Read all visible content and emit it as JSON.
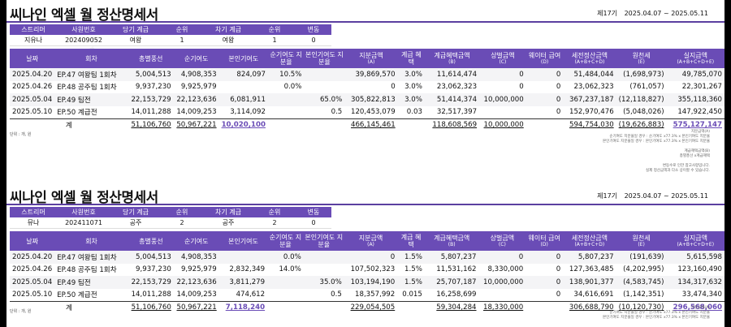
{
  "sections": [
    {
      "title": "씨나인 엑셀 월 정산명세서",
      "period_label": "제17기",
      "period_range": "2025.04.07 ~ 2025.05.11",
      "info_headers": [
        "스트리머",
        "사원번호",
        "당기 계급",
        "순위",
        "차기 계급",
        "순위",
        "변동"
      ],
      "info_values": [
        "지유나",
        "202409052",
        "여왕",
        "1",
        "여왕",
        "1",
        "0"
      ],
      "headers": [
        {
          "main": "날짜",
          "sub": ""
        },
        {
          "main": "회차",
          "sub": ""
        },
        {
          "main": "총별풍선",
          "sub": ""
        },
        {
          "main": "순기여도",
          "sub": ""
        },
        {
          "main": "본인기여도",
          "sub": ""
        },
        {
          "main": "순기여도 지분율",
          "sub": ""
        },
        {
          "main": "본인기여도 지분율",
          "sub": ""
        },
        {
          "main": "지분금액",
          "sub": "(A)"
        },
        {
          "main": "계급 혜택",
          "sub": ""
        },
        {
          "main": "계급혜택금액",
          "sub": "(B)"
        },
        {
          "main": "상벌금액",
          "sub": "(C)"
        },
        {
          "main": "웨이터 급여",
          "sub": "(D)"
        },
        {
          "main": "세전정산금액",
          "sub": "(A+B+C+D)"
        },
        {
          "main": "원천세",
          "sub": "(E)"
        },
        {
          "main": "실지급액",
          "sub": "(A+B+C+D+E)"
        }
      ],
      "rows": [
        [
          "2025.04.20",
          "EP.47 여왕팀 1회차",
          "5,004,513",
          "4,908,353",
          "824,097",
          "10.5%",
          "",
          "39,869,570",
          "3.0%",
          "11,614,474",
          "0",
          "0",
          "51,484,044",
          "(1,698,973)",
          "49,785,070"
        ],
        [
          "2025.04.26",
          "EP.48 공주팀 1회차",
          "9,937,230",
          "9,925,979",
          "",
          "0.0%",
          "",
          "0",
          "3.0%",
          "23,062,323",
          "0",
          "0",
          "23,062,323",
          "(761,057)",
          "22,301,267"
        ],
        [
          "2025.05.04",
          "EP.49 팀전",
          "22,153,729",
          "22,123,636",
          "6,081,911",
          "",
          "65.0%",
          "305,822,813",
          "3.0%",
          "51,414,374",
          "10,000,000",
          "0",
          "367,237,187",
          "(12,118,827)",
          "355,118,360"
        ],
        [
          "2025.05.10",
          "EP.50 계급전",
          "14,011,288",
          "14,009,253",
          "3,114,092",
          "",
          "0.5",
          "120,453,079",
          "0.03",
          "32,517,397",
          "",
          "0",
          "152,970,476",
          "(5,048,026)",
          "147,922,450"
        ]
      ],
      "total": {
        "label": "계",
        "values": [
          "51,106,760",
          "50,967,221",
          "10,020,100",
          "",
          "",
          "466,145,461",
          "",
          "118,608,569",
          "10,000,000",
          "",
          "594,754,030",
          "(19,626,883)",
          "575,127,147"
        ]
      },
      "unit": "단위 : 개, 원",
      "notes": [
        "지분금액(A)",
        "순기여도 지분율일 경우 : 순기여도 x77.3% x 본인기여도 지분율",
        "본인기여도 지분율일 경우 : 본인기여도 x77.3% x 본인기여도 지분율",
        "",
        "계급혜택금액(B)",
        "총별풍선 x계급혜택",
        "",
        "변동수로 인한 참고사항입니다.",
        "실제 정산금액과 다소 상이할 수 있습니다."
      ]
    },
    {
      "title": "씨나인 엑셀 월 정산명세서",
      "period_label": "제17기",
      "period_range": "2025.04.07 ~ 2025.05.11",
      "info_headers": [
        "스트리머",
        "사원번호",
        "당기 계급",
        "순위",
        "차기 계급",
        "순위",
        "변동"
      ],
      "info_values": [
        "뮤나",
        "202411071",
        "공주",
        "2",
        "공주",
        "2",
        "0"
      ],
      "headers": [
        {
          "main": "날짜",
          "sub": ""
        },
        {
          "main": "회차",
          "sub": ""
        },
        {
          "main": "총별풍선",
          "sub": ""
        },
        {
          "main": "순기여도",
          "sub": ""
        },
        {
          "main": "본인기여도",
          "sub": ""
        },
        {
          "main": "순기여도 지분율",
          "sub": ""
        },
        {
          "main": "본인기여도 지분율",
          "sub": ""
        },
        {
          "main": "지분금액",
          "sub": "(A)"
        },
        {
          "main": "계급 혜택",
          "sub": ""
        },
        {
          "main": "계급혜택금액",
          "sub": "(B)"
        },
        {
          "main": "상벌금액",
          "sub": "(C)"
        },
        {
          "main": "웨이터 급여",
          "sub": "(D)"
        },
        {
          "main": "세전정산금액",
          "sub": "(A+B+C+D)"
        },
        {
          "main": "원천세",
          "sub": "(E)"
        },
        {
          "main": "실지급액",
          "sub": "(A+B+C+D+E)"
        }
      ],
      "rows": [
        [
          "2025.04.20",
          "EP.47 여왕팀 1회차",
          "5,004,513",
          "4,908,353",
          "",
          "0.0%",
          "",
          "0",
          "1.5%",
          "5,807,237",
          "0",
          "0",
          "5,807,237",
          "(191,639)",
          "5,615,598"
        ],
        [
          "2025.04.26",
          "EP.48 공주팀 1회차",
          "9,937,230",
          "9,925,979",
          "2,832,349",
          "14.0%",
          "",
          "107,502,323",
          "1.5%",
          "11,531,162",
          "8,330,000",
          "0",
          "127,363,485",
          "(4,202,995)",
          "123,160,490"
        ],
        [
          "2025.05.04",
          "EP.49 팀전",
          "22,153,729",
          "22,123,636",
          "3,811,279",
          "",
          "35.0%",
          "103,194,190",
          "1.5%",
          "25,707,187",
          "10,000,000",
          "0",
          "138,901,377",
          "(4,583,745)",
          "134,317,632"
        ],
        [
          "2025.05.10",
          "EP.50 계급전",
          "14,011,288",
          "14,009,253",
          "474,612",
          "",
          "0.5",
          "18,357,992",
          "0.015",
          "16,258,699",
          "",
          "0",
          "34,616,691",
          "(1,142,351)",
          "33,474,340"
        ]
      ],
      "total": {
        "label": "계",
        "values": [
          "51,106,760",
          "50,967,221",
          "7,118,240",
          "",
          "",
          "229,054,505",
          "",
          "59,304,284",
          "18,330,000",
          "",
          "306,688,790",
          "(10,120,730)",
          "296,568,060"
        ]
      },
      "unit": "단위 : 개, 원",
      "notes": [
        "지분금액(A)",
        "순기여도 지분율일 경우 : 순기여도 x77.3% x 본인기여도 지분율",
        "본인기여도 지분율일 경우 : 본인기여도 x77.3% x 본인기여도 지분율"
      ]
    }
  ],
  "colors": {
    "accent": "#6a4cb6",
    "highlight": "#6a4cb6"
  }
}
